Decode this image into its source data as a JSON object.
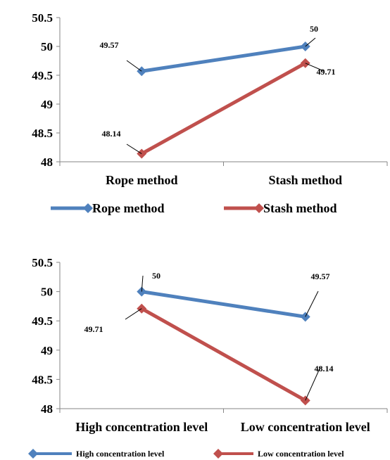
{
  "chart_data": [
    {
      "type": "line",
      "categories": [
        "Rope method",
        "Stash method"
      ],
      "ylim": [
        48,
        50.5
      ],
      "yticks": [
        "48",
        "48.5",
        "49",
        "49.5",
        "50",
        "50.5"
      ],
      "series": [
        {
          "name": "Rope method",
          "color": "#4F81BD",
          "values": [
            49.57,
            50
          ],
          "labels": [
            "49.57",
            "50"
          ]
        },
        {
          "name": "Stash method",
          "color": "#C0504D",
          "values": [
            48.14,
            49.71
          ],
          "labels": [
            "48.14",
            "49.71"
          ]
        }
      ],
      "legend": "bottom",
      "grid": false
    },
    {
      "type": "line",
      "categories": [
        "High concentration level",
        "Low concentration level"
      ],
      "ylim": [
        48,
        50.5
      ],
      "yticks": [
        "48",
        "48.5",
        "49",
        "49.5",
        "50",
        "50.5"
      ],
      "series": [
        {
          "name": "High concentration level",
          "color": "#4F81BD",
          "values": [
            50,
            49.57
          ],
          "labels": [
            "50",
            "49.57"
          ]
        },
        {
          "name": "Low concentration level",
          "color": "#C0504D",
          "values": [
            49.71,
            48.14
          ],
          "labels": [
            "49.71",
            "48.14"
          ]
        }
      ],
      "legend": "bottom",
      "grid": false
    }
  ]
}
